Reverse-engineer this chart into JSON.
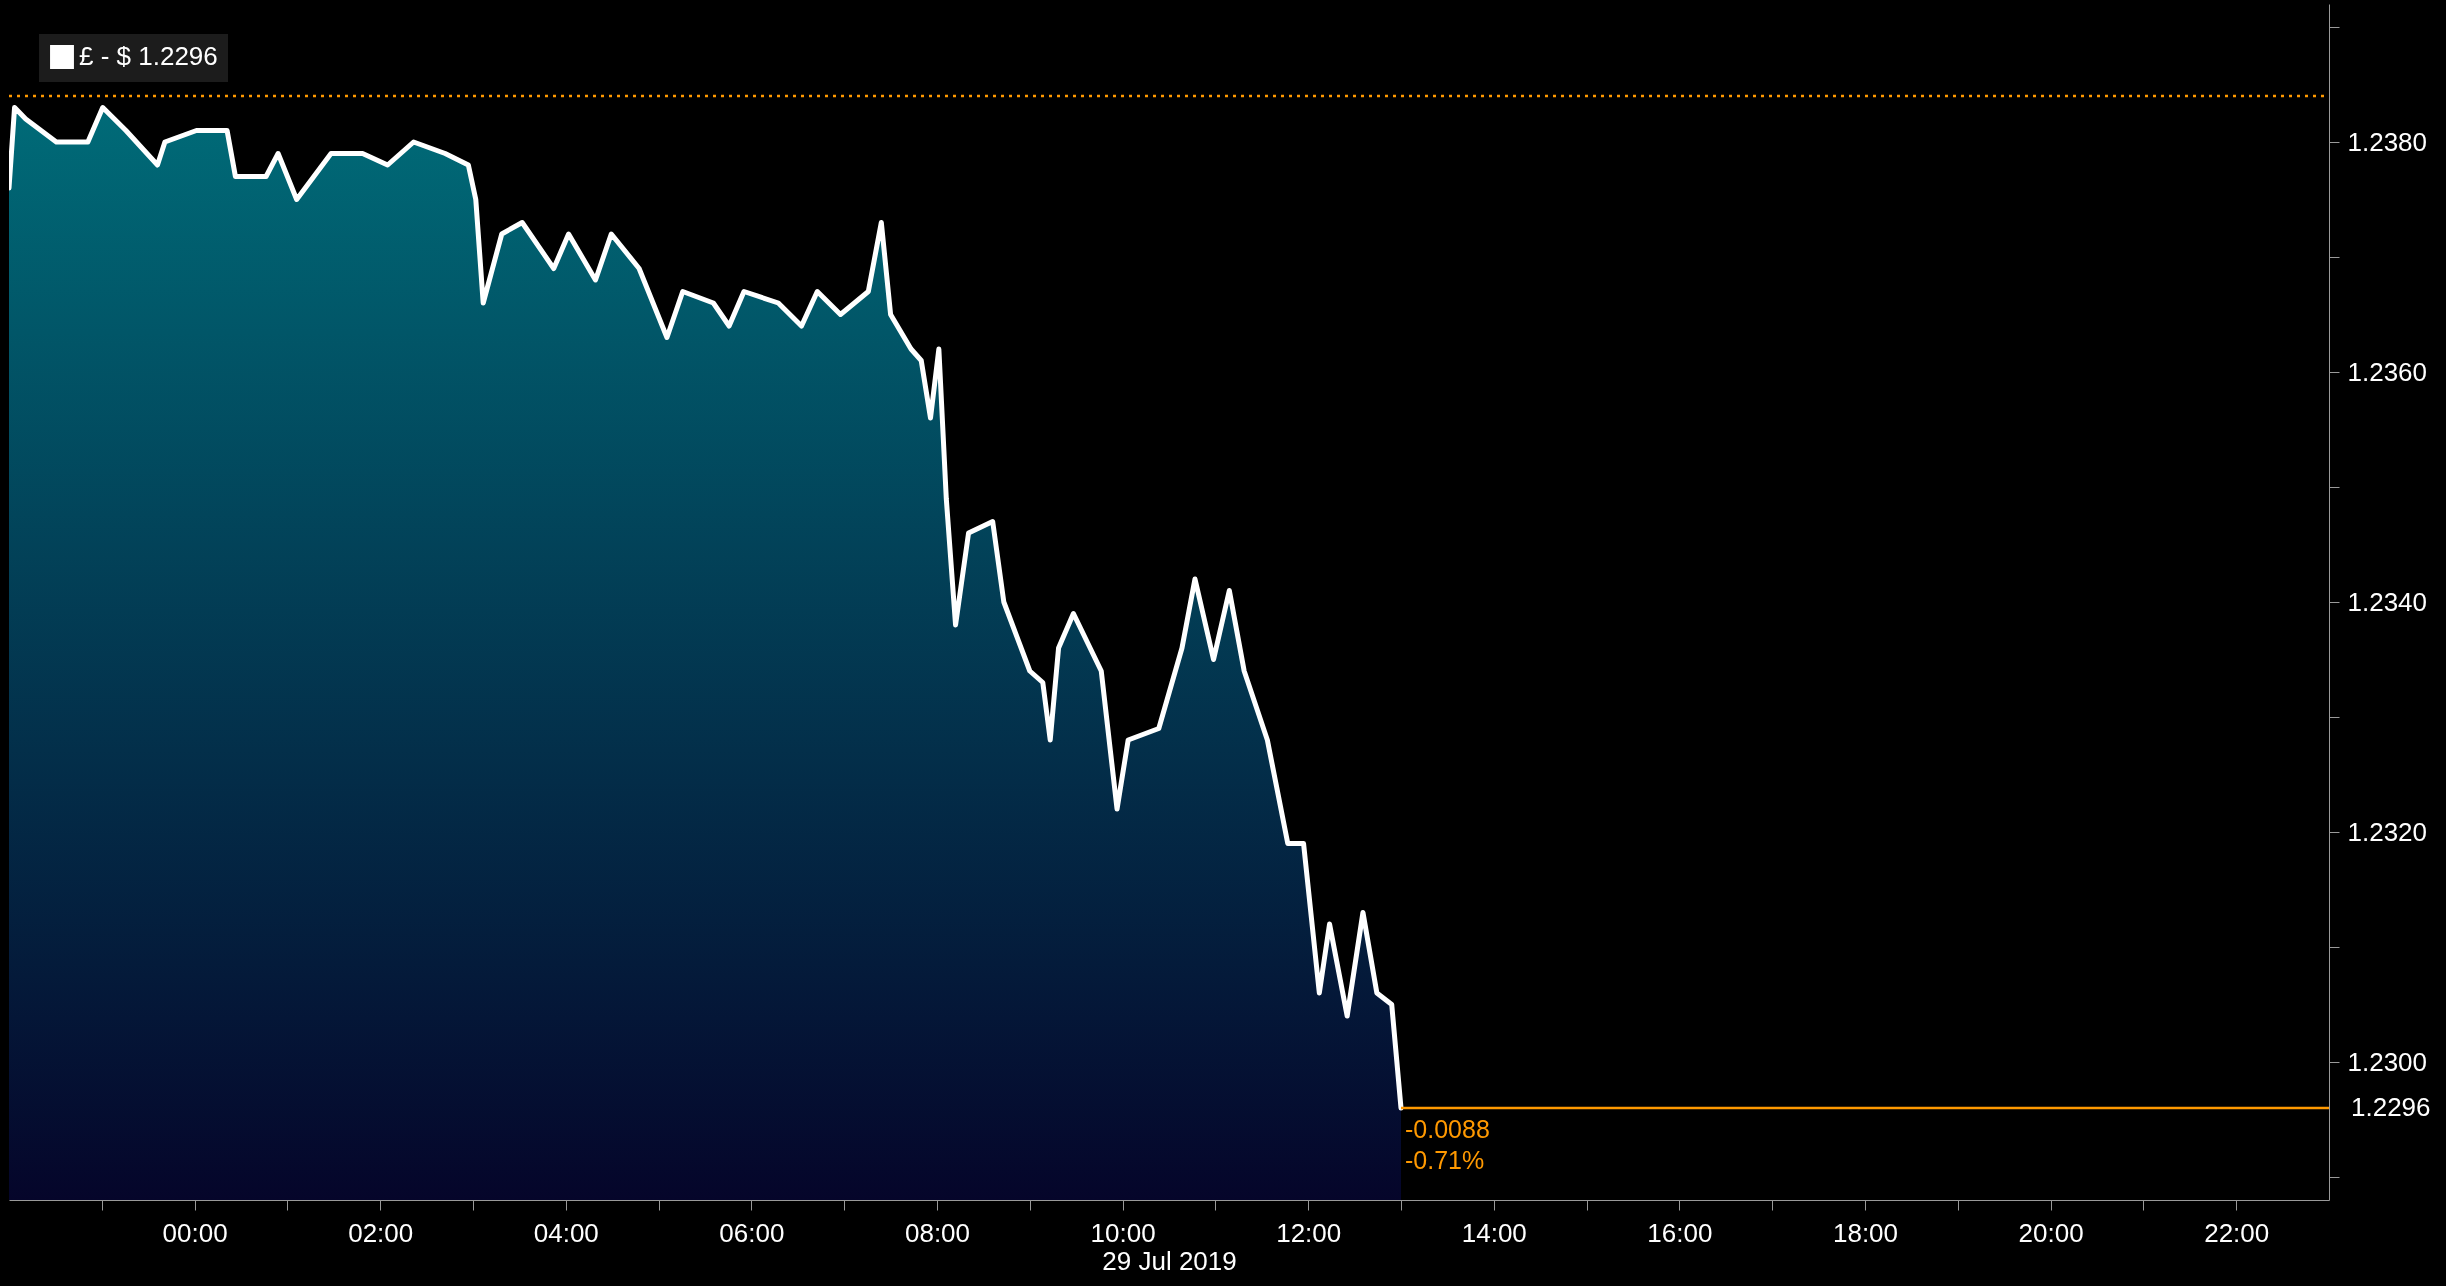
{
  "chart_data": {
    "type": "area",
    "xlabel": "29 Jul 2019",
    "x": [
      -2.0,
      -1.94,
      -1.82,
      -1.49,
      -1.15,
      -0.99,
      -0.74,
      -0.4,
      -0.32,
      0.02,
      0.35,
      0.44,
      0.77,
      0.9,
      1.1,
      1.47,
      1.81,
      2.08,
      2.36,
      2.7,
      2.95,
      3.03,
      3.11,
      3.31,
      3.53,
      3.87,
      4.03,
      4.32,
      4.49,
      4.79,
      5.09,
      5.26,
      5.59,
      5.76,
      5.92,
      6.29,
      6.54,
      6.71,
      6.96,
      7.26,
      7.4,
      7.5,
      7.72,
      7.83,
      7.93,
      8.02,
      8.1,
      8.2,
      8.34,
      8.6,
      8.72,
      9.0,
      9.14,
      9.22,
      9.31,
      9.47,
      9.77,
      9.94,
      10.06,
      10.39,
      10.64,
      10.78,
      10.98,
      11.15,
      11.31,
      11.56,
      11.78,
      11.95,
      12.12,
      12.23,
      12.42,
      12.59,
      12.74,
      12.9,
      13.0
    ],
    "series": [
      {
        "name": "£ - $ 1.2296",
        "color": "#ffffff",
        "values": [
          1.2376,
          1.2383,
          1.2382,
          1.238,
          1.238,
          1.2383,
          1.2381,
          1.2378,
          1.238,
          1.2381,
          1.2381,
          1.2377,
          1.2377,
          1.2379,
          1.2375,
          1.2379,
          1.2379,
          1.2378,
          1.238,
          1.2379,
          1.2378,
          1.2375,
          1.2366,
          1.2372,
          1.2373,
          1.2369,
          1.2372,
          1.2368,
          1.2372,
          1.2369,
          1.2363,
          1.2367,
          1.2366,
          1.2364,
          1.2367,
          1.2366,
          1.2364,
          1.2367,
          1.2365,
          1.2367,
          1.2373,
          1.2365,
          1.2362,
          1.2361,
          1.2356,
          1.2362,
          1.2349,
          1.2338,
          1.2346,
          1.2347,
          1.234,
          1.2334,
          1.2333,
          1.2328,
          1.2336,
          1.2339,
          1.2334,
          1.2322,
          1.2328,
          1.2329,
          1.2336,
          1.2342,
          1.2335,
          1.2341,
          1.2334,
          1.2328,
          1.2319,
          1.2319,
          1.2306,
          1.2312,
          1.2304,
          1.2313,
          1.2306,
          1.2305,
          1.2296
        ]
      }
    ],
    "xlim": [
      -2,
      23
    ],
    "xticks": [
      {
        "value": -1,
        "label": null
      },
      {
        "value": 0,
        "label": "00:00"
      },
      {
        "value": 1,
        "label": null
      },
      {
        "value": 2,
        "label": "02:00"
      },
      {
        "value": 3,
        "label": null
      },
      {
        "value": 4,
        "label": "04:00"
      },
      {
        "value": 5,
        "label": null
      },
      {
        "value": 6,
        "label": "06:00"
      },
      {
        "value": 7,
        "label": null
      },
      {
        "value": 8,
        "label": "08:00"
      },
      {
        "value": 9,
        "label": null
      },
      {
        "value": 10,
        "label": "10:00"
      },
      {
        "value": 11,
        "label": null
      },
      {
        "value": 12,
        "label": "12:00"
      },
      {
        "value": 13,
        "label": null
      },
      {
        "value": 14,
        "label": "14:00"
      },
      {
        "value": 15,
        "label": null
      },
      {
        "value": 16,
        "label": "16:00"
      },
      {
        "value": 17,
        "label": null
      },
      {
        "value": 18,
        "label": "18:00"
      },
      {
        "value": 19,
        "label": null
      },
      {
        "value": 20,
        "label": "20:00"
      },
      {
        "value": 21,
        "label": null
      },
      {
        "value": 22,
        "label": "22:00"
      }
    ],
    "ylim": [
      1.2288,
      1.2392
    ],
    "yticks": [
      {
        "value": 1.229,
        "label": null
      },
      {
        "value": 1.23,
        "label": "1.2300"
      },
      {
        "value": 1.231,
        "label": null
      },
      {
        "value": 1.232,
        "label": "1.2320"
      },
      {
        "value": 1.233,
        "label": null
      },
      {
        "value": 1.234,
        "label": "1.2340"
      },
      {
        "value": 1.235,
        "label": null
      },
      {
        "value": 1.236,
        "label": "1.2360"
      },
      {
        "value": 1.237,
        "label": null
      },
      {
        "value": 1.238,
        "label": "1.2380"
      },
      {
        "value": 1.239,
        "label": null
      }
    ],
    "ref_lines": [
      {
        "axis": "y",
        "value": 1.2384,
        "color": "#ff9900",
        "line_style": "dotted"
      },
      {
        "axis": "y",
        "value": 1.2296,
        "label": "1.2296",
        "color": "#ff9900",
        "line_style": "solid"
      }
    ],
    "annotations": [
      "-0.0088",
      "-0.71%"
    ],
    "grid": false,
    "legend": "top left",
    "marker": "none",
    "line_style": "solid"
  }
}
